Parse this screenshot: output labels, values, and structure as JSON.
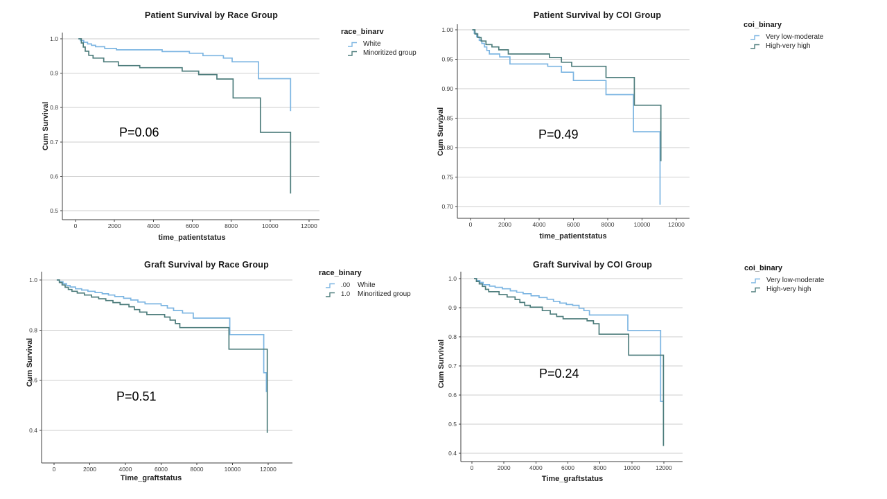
{
  "colors": {
    "series_light_blue": "#7cb5e2",
    "series_dark_teal": "#4e7d7c",
    "gridline": "#cdcdcd",
    "axis": "#3d3d3d",
    "tick_text": "#3a3a3a"
  },
  "chart_data": [
    {
      "type": "line",
      "subtype": "kaplan-meier-step",
      "title": "Patient Survival by Race Group",
      "xlabel": "time_patientstatus",
      "ylabel": "Cum Survival",
      "annotation": "P=0.06",
      "xlim": [
        0,
        12600
      ],
      "ylim": [
        0.5,
        1.0
      ],
      "grid": "horizontal",
      "x_ticks": [
        {
          "value": 0,
          "label": "0"
        },
        {
          "value": 2000,
          "label": "2000"
        },
        {
          "value": 4000,
          "label": "4000"
        },
        {
          "value": 6000,
          "label": "6000"
        },
        {
          "value": 8000,
          "label": "8000"
        },
        {
          "value": 10000,
          "label": "10000"
        },
        {
          "value": 12000,
          "label": "12000"
        }
      ],
      "y_ticks": [
        {
          "value": 1.0,
          "label": "1.0"
        },
        {
          "value": 0.9,
          "label": "0.9"
        },
        {
          "value": 0.8,
          "label": "0.8"
        },
        {
          "value": 0.7,
          "label": "0.7"
        },
        {
          "value": 0.6,
          "label": "0.6"
        },
        {
          "value": 0.5,
          "label": "0.5"
        }
      ],
      "legend": {
        "title": "race_binarv",
        "position": "right",
        "entries": [
          {
            "label": "White",
            "color": "#7cb5e2"
          },
          {
            "label": "Minoritized group",
            "color": "#4e7d7c"
          }
        ]
      },
      "series": [
        {
          "name": "White",
          "color": "#7cb5e2",
          "points": [
            [
              150,
              1.0
            ],
            [
              250,
              0.995
            ],
            [
              420,
              0.99
            ],
            [
              620,
              0.985
            ],
            [
              820,
              0.981
            ],
            [
              1030,
              0.977
            ],
            [
              1500,
              0.972
            ],
            [
              2100,
              0.968
            ],
            [
              4450,
              0.963
            ],
            [
              5850,
              0.958
            ],
            [
              6550,
              0.951
            ],
            [
              7600,
              0.944
            ],
            [
              8050,
              0.933
            ],
            [
              9400,
              0.884
            ],
            [
              11050,
              0.79
            ]
          ]
        },
        {
          "name": "Minoritized group",
          "color": "#4e7d7c",
          "points": [
            [
              150,
              1.0
            ],
            [
              300,
              0.988
            ],
            [
              400,
              0.976
            ],
            [
              500,
              0.964
            ],
            [
              680,
              0.952
            ],
            [
              900,
              0.944
            ],
            [
              1450,
              0.933
            ],
            [
              2200,
              0.922
            ],
            [
              3300,
              0.916
            ],
            [
              5480,
              0.906
            ],
            [
              6330,
              0.896
            ],
            [
              7265,
              0.883
            ],
            [
              8100,
              0.828
            ],
            [
              9500,
              0.728
            ],
            [
              11050,
              0.55
            ]
          ]
        }
      ]
    },
    {
      "type": "line",
      "subtype": "kaplan-meier-step",
      "title": "Patient Survival by COI Group",
      "xlabel": "time_patientstatus",
      "ylabel": "Cum Survival",
      "annotation": "P=0.49",
      "xlim": [
        0,
        12600
      ],
      "ylim": [
        0.7,
        1.0
      ],
      "grid": "horizontal",
      "x_ticks": [
        {
          "value": 0,
          "label": "0"
        },
        {
          "value": 2000,
          "label": "2000"
        },
        {
          "value": 4000,
          "label": "4000"
        },
        {
          "value": 6000,
          "label": "6000"
        },
        {
          "value": 8000,
          "label": "8000"
        },
        {
          "value": 10000,
          "label": "10000"
        },
        {
          "value": 12000,
          "label": "12000"
        }
      ],
      "y_ticks": [
        {
          "value": 1.0,
          "label": "1.00"
        },
        {
          "value": 0.95,
          "label": "0.95"
        },
        {
          "value": 0.9,
          "label": "0.90"
        },
        {
          "value": 0.85,
          "label": "0.85"
        },
        {
          "value": 0.8,
          "label": "0.80"
        },
        {
          "value": 0.75,
          "label": "0.75"
        },
        {
          "value": 0.7,
          "label": "0.70"
        }
      ],
      "legend": {
        "title": "coi_binary",
        "position": "right",
        "entries": [
          {
            "label": "Very low-moderate",
            "color": "#7cb5e2"
          },
          {
            "label": "High-very high",
            "color": "#4e7d7c"
          }
        ]
      },
      "series": [
        {
          "name": "Very low-moderate",
          "color": "#7cb5e2",
          "points": [
            [
              100,
              1.0
            ],
            [
              220,
              0.994
            ],
            [
              360,
              0.988
            ],
            [
              510,
              0.982
            ],
            [
              660,
              0.977
            ],
            [
              810,
              0.971
            ],
            [
              950,
              0.965
            ],
            [
              1100,
              0.959
            ],
            [
              1700,
              0.954
            ],
            [
              2300,
              0.942
            ],
            [
              4500,
              0.938
            ],
            [
              5300,
              0.928
            ],
            [
              6000,
              0.914
            ],
            [
              7900,
              0.89
            ],
            [
              9500,
              0.827
            ],
            [
              11050,
              0.703
            ]
          ]
        },
        {
          "name": "High-very high",
          "color": "#4e7d7c",
          "points": [
            [
              100,
              1.0
            ],
            [
              260,
              0.993
            ],
            [
              420,
              0.987
            ],
            [
              620,
              0.981
            ],
            [
              900,
              0.975
            ],
            [
              1250,
              0.971
            ],
            [
              1650,
              0.966
            ],
            [
              2200,
              0.959
            ],
            [
              4600,
              0.953
            ],
            [
              5300,
              0.945
            ],
            [
              5900,
              0.938
            ],
            [
              7900,
              0.919
            ],
            [
              9550,
              0.872
            ],
            [
              11100,
              0.777
            ]
          ]
        }
      ]
    },
    {
      "type": "line",
      "subtype": "kaplan-meier-step",
      "title": "Graft Survival by Race Group",
      "xlabel": "Time_graftstatus",
      "ylabel": "Cum Survival",
      "annotation": "P=0.51",
      "xlim": [
        0,
        13300
      ],
      "ylim": [
        0.4,
        1.0
      ],
      "grid": "horizontal",
      "x_ticks": [
        {
          "value": 0,
          "label": "0"
        },
        {
          "value": 2000,
          "label": "2000"
        },
        {
          "value": 4000,
          "label": "4000"
        },
        {
          "value": 6000,
          "label": "6000"
        },
        {
          "value": 8000,
          "label": "8000"
        },
        {
          "value": 10000,
          "label": "10000"
        },
        {
          "value": 12000,
          "label": "12000"
        }
      ],
      "y_ticks": [
        {
          "value": 1.0,
          "label": "1.0"
        },
        {
          "value": 0.8,
          "label": "0.8"
        },
        {
          "value": 0.6,
          "label": "0.6"
        },
        {
          "value": 0.4,
          "label": "0.4"
        }
      ],
      "legend": {
        "title": "race_binary",
        "position": "right",
        "entries": [
          {
            "value_label": ".00",
            "label": "White",
            "color": "#7cb5e2"
          },
          {
            "value_label": "1.0",
            "label": "Minoritized group",
            "color": "#4e7d7c"
          }
        ]
      },
      "series": [
        {
          "name": "White",
          "color": "#7cb5e2",
          "points": [
            [
              150,
              1.0
            ],
            [
              300,
              0.993
            ],
            [
              500,
              0.985
            ],
            [
              700,
              0.978
            ],
            [
              900,
              0.972
            ],
            [
              1200,
              0.965
            ],
            [
              1550,
              0.96
            ],
            [
              1900,
              0.955
            ],
            [
              2300,
              0.95
            ],
            [
              2700,
              0.945
            ],
            [
              3050,
              0.94
            ],
            [
              3400,
              0.934
            ],
            [
              3900,
              0.927
            ],
            [
              4300,
              0.92
            ],
            [
              4700,
              0.912
            ],
            [
              5100,
              0.905
            ],
            [
              6000,
              0.898
            ],
            [
              6350,
              0.888
            ],
            [
              6700,
              0.878
            ],
            [
              7200,
              0.868
            ],
            [
              7800,
              0.848
            ],
            [
              9850,
              0.782
            ],
            [
              11750,
              0.63
            ],
            [
              11900,
              0.553
            ]
          ]
        },
        {
          "name": "Minoritized group",
          "color": "#4e7d7c",
          "points": [
            [
              150,
              1.0
            ],
            [
              300,
              0.99
            ],
            [
              450,
              0.98
            ],
            [
              620,
              0.971
            ],
            [
              800,
              0.962
            ],
            [
              1000,
              0.955
            ],
            [
              1300,
              0.948
            ],
            [
              1700,
              0.94
            ],
            [
              2100,
              0.932
            ],
            [
              2500,
              0.925
            ],
            [
              2900,
              0.918
            ],
            [
              3300,
              0.91
            ],
            [
              3700,
              0.902
            ],
            [
              4200,
              0.893
            ],
            [
              4500,
              0.882
            ],
            [
              4800,
              0.872
            ],
            [
              5200,
              0.862
            ],
            [
              6200,
              0.852
            ],
            [
              6500,
              0.84
            ],
            [
              6800,
              0.826
            ],
            [
              7050,
              0.81
            ],
            [
              9800,
              0.724
            ],
            [
              11950,
              0.39
            ]
          ]
        }
      ]
    },
    {
      "type": "line",
      "subtype": "kaplan-meier-step",
      "title": "Graft Survival by COI Group",
      "xlabel": "Time_graftstatus",
      "ylabel": "Cum Survival",
      "annotation": "P=0.24",
      "xlim": [
        0,
        13200
      ],
      "ylim": [
        0.4,
        1.0
      ],
      "grid": "horizontal",
      "x_ticks": [
        {
          "value": 0,
          "label": "0"
        },
        {
          "value": 2000,
          "label": "2000"
        },
        {
          "value": 4000,
          "label": "4000"
        },
        {
          "value": 6000,
          "label": "6000"
        },
        {
          "value": 8000,
          "label": "8000"
        },
        {
          "value": 10000,
          "label": "10000"
        },
        {
          "value": 12000,
          "label": "12000"
        }
      ],
      "y_ticks": [
        {
          "value": 1.0,
          "label": "1.0"
        },
        {
          "value": 0.9,
          "label": "0.9"
        },
        {
          "value": 0.8,
          "label": "0.8"
        },
        {
          "value": 0.7,
          "label": "0.7"
        },
        {
          "value": 0.6,
          "label": "0.6"
        },
        {
          "value": 0.5,
          "label": "0.5"
        },
        {
          "value": 0.4,
          "label": "0.4"
        }
      ],
      "legend": {
        "title": "coi_binary",
        "position": "right",
        "entries": [
          {
            "label": "Very low-moderate",
            "color": "#7cb5e2"
          },
          {
            "label": "High-very high",
            "color": "#4e7d7c"
          }
        ]
      },
      "series": [
        {
          "name": "Very low-moderate",
          "color": "#7cb5e2",
          "points": [
            [
              130,
              1.0
            ],
            [
              300,
              0.993
            ],
            [
              500,
              0.987
            ],
            [
              700,
              0.979
            ],
            [
              1100,
              0.974
            ],
            [
              1450,
              0.97
            ],
            [
              1900,
              0.965
            ],
            [
              2400,
              0.958
            ],
            [
              2800,
              0.953
            ],
            [
              3200,
              0.948
            ],
            [
              3700,
              0.941
            ],
            [
              4200,
              0.935
            ],
            [
              4700,
              0.929
            ],
            [
              5100,
              0.922
            ],
            [
              5500,
              0.916
            ],
            [
              5900,
              0.911
            ],
            [
              6300,
              0.908
            ],
            [
              6700,
              0.898
            ],
            [
              7000,
              0.89
            ],
            [
              7350,
              0.875
            ],
            [
              9750,
              0.822
            ],
            [
              11800,
              0.578
            ],
            [
              12000,
              0.578
            ]
          ]
        },
        {
          "name": "High-very high",
          "color": "#4e7d7c",
          "points": [
            [
              130,
              1.0
            ],
            [
              280,
              0.99
            ],
            [
              460,
              0.982
            ],
            [
              650,
              0.973
            ],
            [
              850,
              0.963
            ],
            [
              1050,
              0.955
            ],
            [
              1700,
              0.945
            ],
            [
              2200,
              0.937
            ],
            [
              2700,
              0.928
            ],
            [
              3000,
              0.918
            ],
            [
              3300,
              0.908
            ],
            [
              3650,
              0.902
            ],
            [
              4400,
              0.89
            ],
            [
              4900,
              0.878
            ],
            [
              5300,
              0.87
            ],
            [
              5700,
              0.862
            ],
            [
              7200,
              0.855
            ],
            [
              7600,
              0.845
            ],
            [
              7950,
              0.809
            ],
            [
              9800,
              0.737
            ],
            [
              11975,
              0.425
            ]
          ]
        }
      ]
    }
  ]
}
